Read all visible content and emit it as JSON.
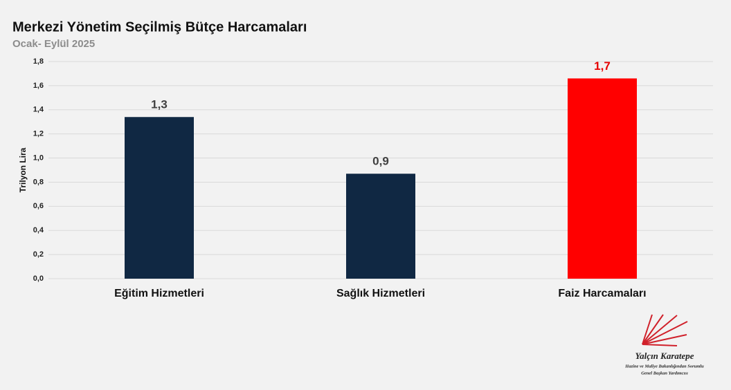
{
  "chart_data": {
    "type": "bar",
    "title": "Merkezi Yönetim Seçilmiş Bütçe Harcamaları",
    "subtitle": "Ocak- Eylül 2025",
    "y_label": "Trilyon Lira",
    "categories": [
      "Eğitim Hizmetleri",
      "Sağlık Hizmetleri",
      "Faiz Harcamaları"
    ],
    "values": [
      1.34,
      0.87,
      1.66
    ],
    "value_labels": [
      "1,3",
      "0,9",
      "1,7"
    ],
    "colors": [
      "#102843",
      "#102843",
      "#ff0000"
    ],
    "value_label_colors": [
      "#404040",
      "#404040",
      "#e60000"
    ],
    "ylim": [
      0,
      1.8
    ],
    "yticks": [
      {
        "value": 0,
        "label": "0,0"
      },
      {
        "value": 0.2,
        "label": "0,2"
      },
      {
        "value": 0.4,
        "label": "0,4"
      },
      {
        "value": 0.6,
        "label": "0,6"
      },
      {
        "value": 0.8,
        "label": "0,8"
      },
      {
        "value": 1.0,
        "label": "1,0"
      },
      {
        "value": 1.2,
        "label": "1,2"
      },
      {
        "value": 1.4,
        "label": "1,4"
      },
      {
        "value": 1.6,
        "label": "1,6"
      },
      {
        "value": 1.8,
        "label": "1,8"
      }
    ],
    "grid": true
  },
  "logo": {
    "name": "Yalçın Karatepe",
    "line1": "Hazine ve Maliye Bakanlığından Sorumlu",
    "line2": "Genel Başkan Yardımcısı"
  }
}
